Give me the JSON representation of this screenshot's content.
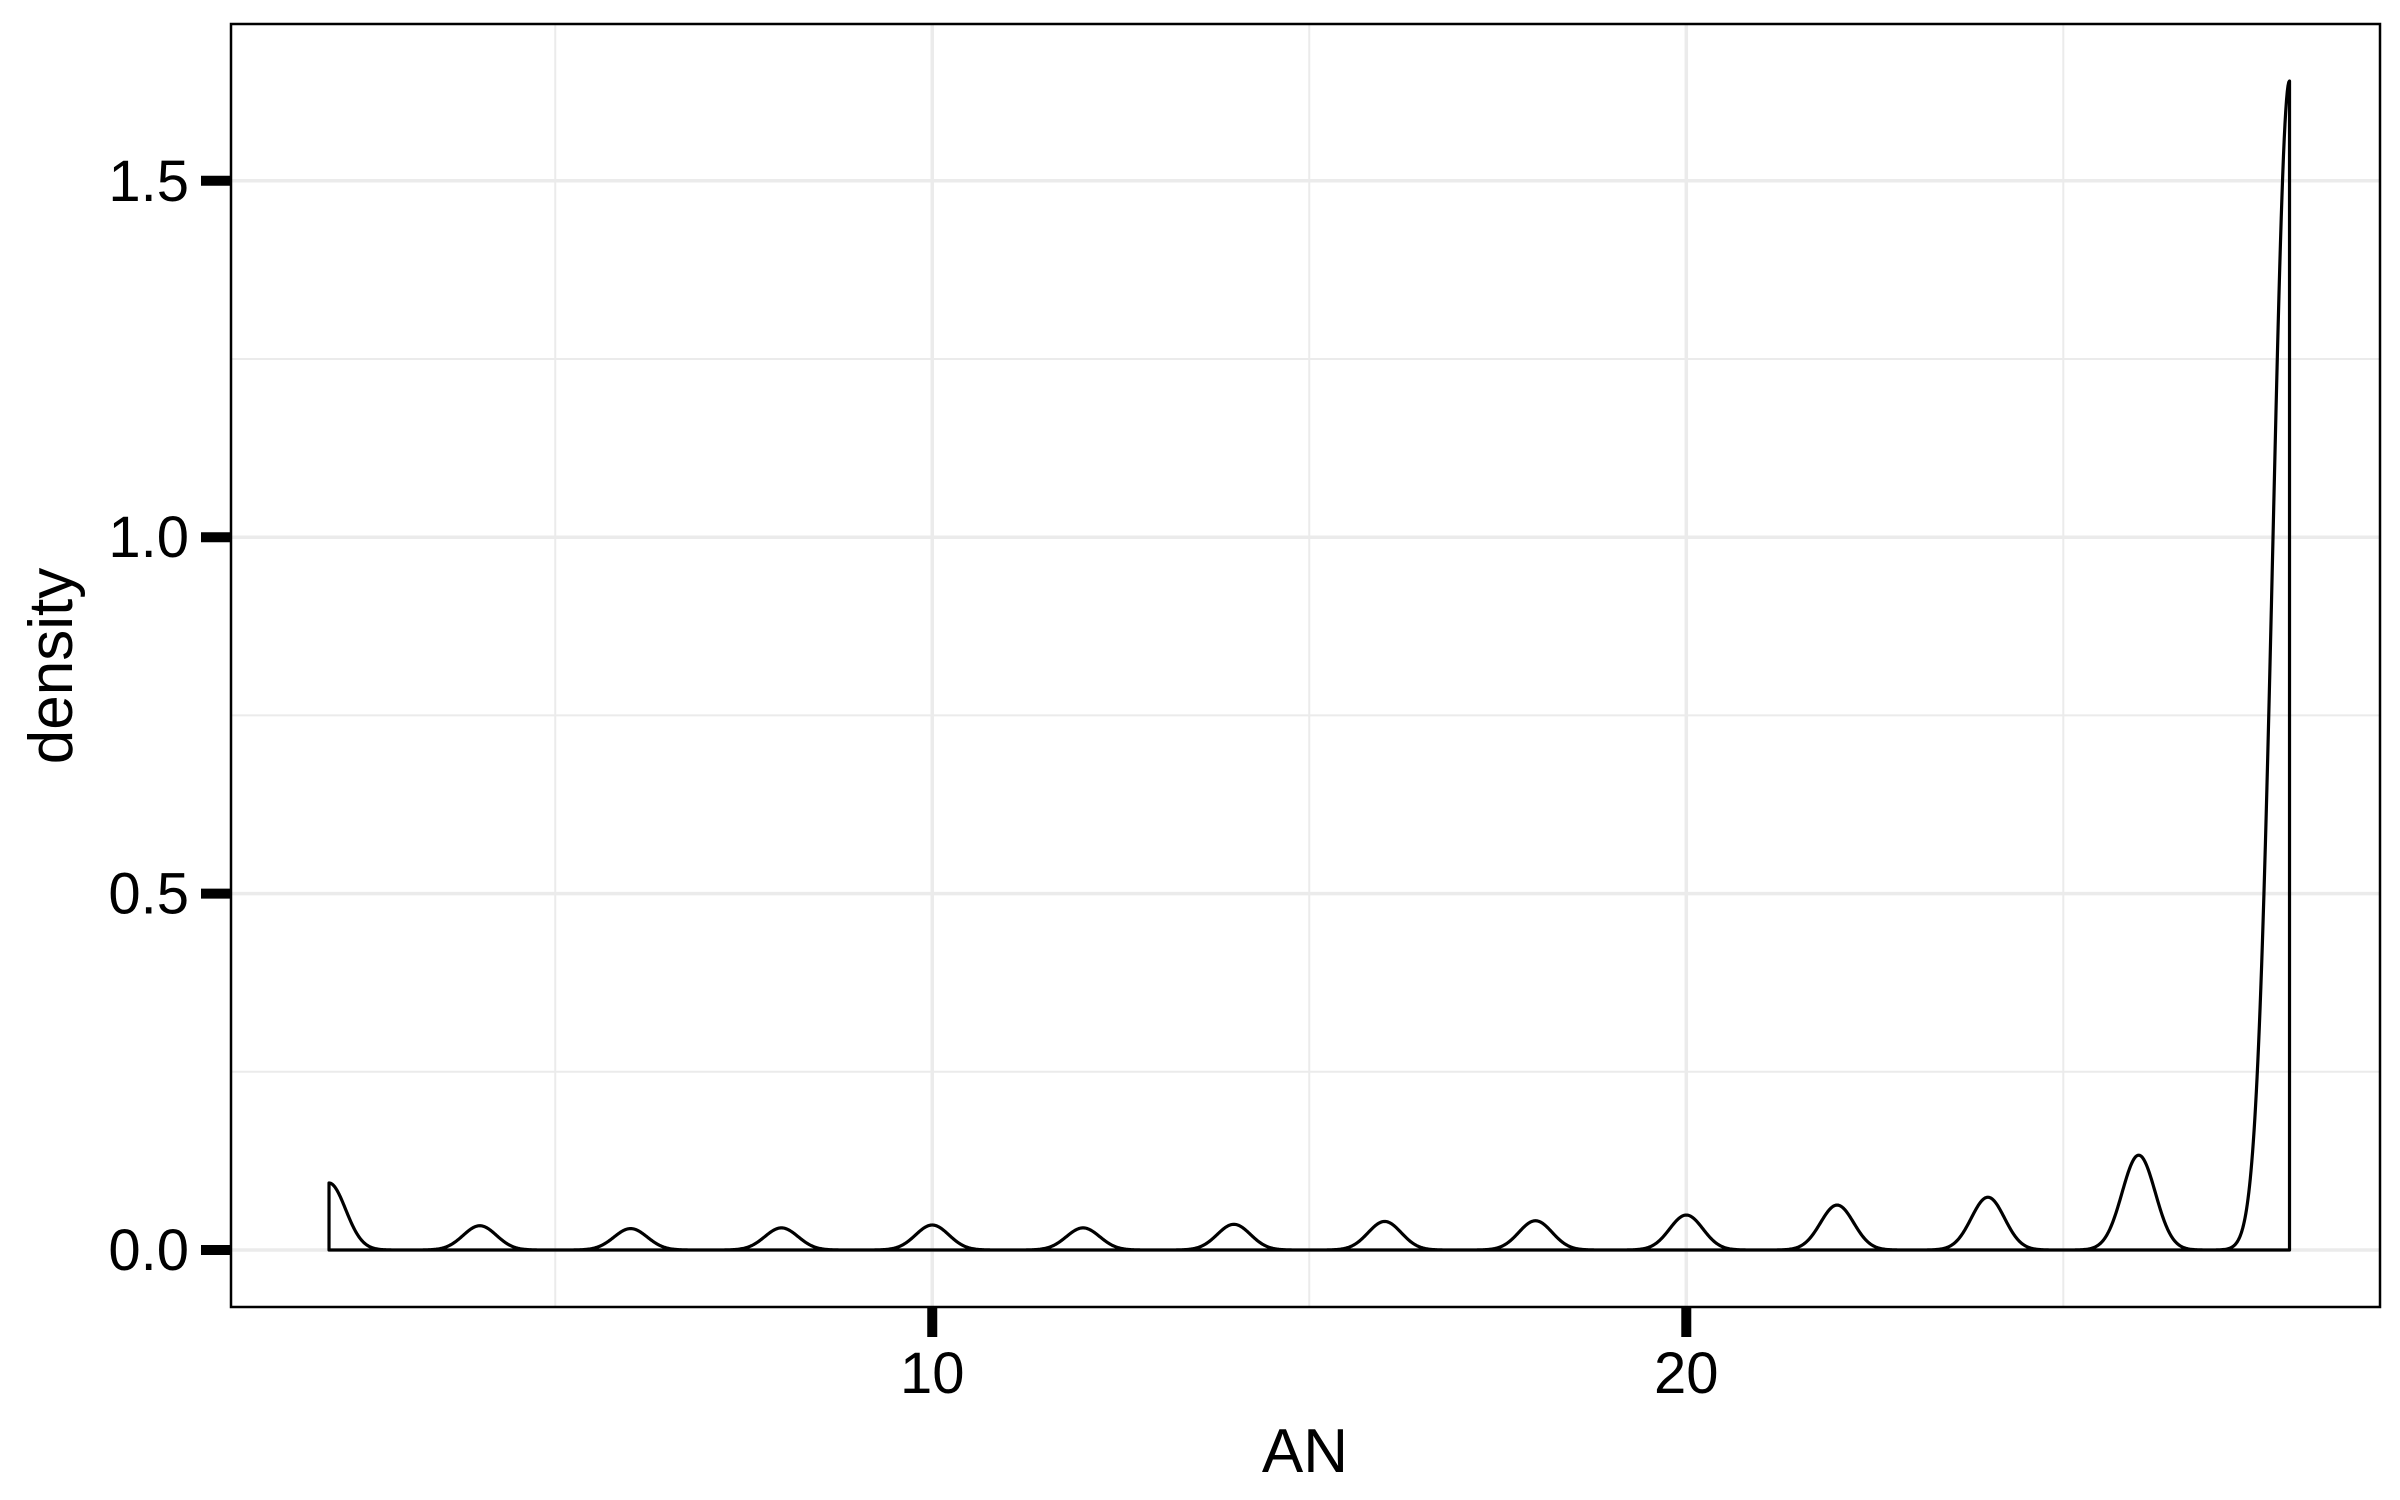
{
  "chart_data": {
    "type": "area",
    "title": "",
    "xlabel": "AN",
    "ylabel": "density",
    "xlim": [
      0.7,
      29.2
    ],
    "ylim": [
      -0.08,
      1.72
    ],
    "x_ticks": [
      {
        "value": 10,
        "label": "10"
      },
      {
        "value": 20,
        "label": "20"
      }
    ],
    "y_ticks": [
      {
        "value": 0.0,
        "label": "0.0"
      },
      {
        "value": 0.5,
        "label": "0.5"
      },
      {
        "value": 1.0,
        "label": "1.0"
      },
      {
        "value": 1.5,
        "label": "1.5"
      }
    ],
    "minor_x": [
      5,
      15,
      25
    ],
    "minor_y": [
      0.25,
      0.75,
      1.25
    ],
    "grid": true,
    "legend": "none",
    "density_range": [
      2,
      28
    ],
    "series": [
      {
        "peaks": [
          {
            "x": 2,
            "y": 0.094
          },
          {
            "x": 4,
            "y": 0.034
          },
          {
            "x": 6,
            "y": 0.03
          },
          {
            "x": 8,
            "y": 0.031
          },
          {
            "x": 10,
            "y": 0.035
          },
          {
            "x": 12,
            "y": 0.031
          },
          {
            "x": 14,
            "y": 0.036
          },
          {
            "x": 16,
            "y": 0.04
          },
          {
            "x": 18,
            "y": 0.041
          },
          {
            "x": 20,
            "y": 0.049
          },
          {
            "x": 22,
            "y": 0.063
          },
          {
            "x": 24,
            "y": 0.074
          },
          {
            "x": 26,
            "y": 0.133
          },
          {
            "x": 28,
            "y": 1.64
          }
        ]
      }
    ],
    "colors": {
      "line": "#000000",
      "grid": "#ebebeb",
      "frame": "#000000"
    }
  }
}
